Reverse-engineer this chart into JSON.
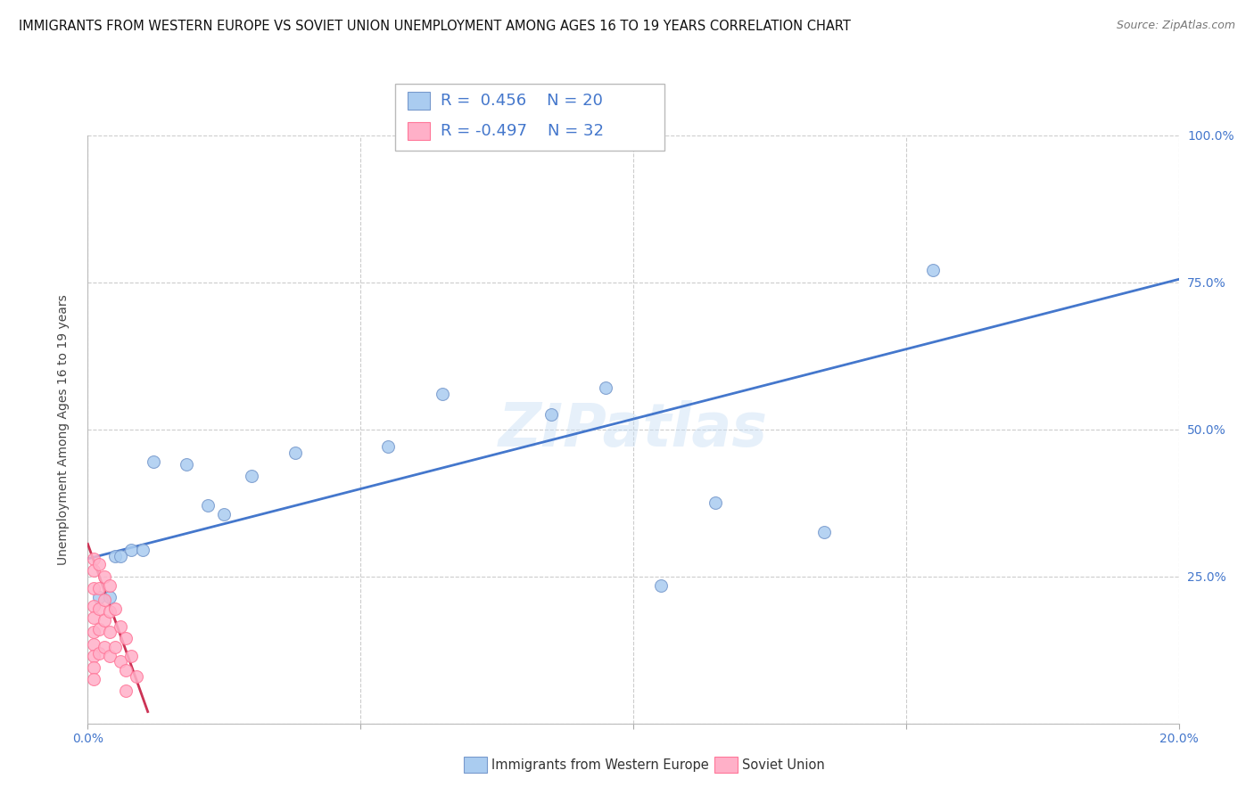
{
  "title": "IMMIGRANTS FROM WESTERN EUROPE VS SOVIET UNION UNEMPLOYMENT AMONG AGES 16 TO 19 YEARS CORRELATION CHART",
  "source": "Source: ZipAtlas.com",
  "ylabel": "Unemployment Among Ages 16 to 19 years",
  "xlim": [
    0.0,
    0.2
  ],
  "ylim": [
    0.0,
    1.0
  ],
  "xticks": [
    0.0,
    0.05,
    0.1,
    0.15,
    0.2
  ],
  "xticklabels": [
    "0.0%",
    "",
    "",
    "",
    "20.0%"
  ],
  "yticks": [
    0.0,
    0.25,
    0.5,
    0.75,
    1.0
  ],
  "yticklabels": [
    "",
    "25.0%",
    "50.0%",
    "75.0%",
    "100.0%"
  ],
  "blue_R": 0.456,
  "blue_N": 20,
  "pink_R": -0.497,
  "pink_N": 32,
  "blue_label": "Immigrants from Western Europe",
  "pink_label": "Soviet Union",
  "blue_color": "#aaccf0",
  "blue_edge": "#7799cc",
  "pink_color": "#ffb0c8",
  "pink_edge": "#ff7799",
  "blue_line_color": "#4477cc",
  "pink_line_color": "#cc3355",
  "watermark": "ZIPatlas",
  "blue_points_x": [
    0.002,
    0.004,
    0.005,
    0.006,
    0.008,
    0.01,
    0.012,
    0.018,
    0.022,
    0.025,
    0.03,
    0.038,
    0.055,
    0.065,
    0.085,
    0.095,
    0.105,
    0.115,
    0.135,
    0.155
  ],
  "blue_points_y": [
    0.215,
    0.215,
    0.285,
    0.285,
    0.295,
    0.295,
    0.445,
    0.44,
    0.37,
    0.355,
    0.42,
    0.46,
    0.47,
    0.56,
    0.525,
    0.57,
    0.235,
    0.375,
    0.325,
    0.77
  ],
  "pink_points_x": [
    0.001,
    0.001,
    0.001,
    0.001,
    0.001,
    0.001,
    0.001,
    0.001,
    0.001,
    0.001,
    0.002,
    0.002,
    0.002,
    0.002,
    0.002,
    0.003,
    0.003,
    0.003,
    0.003,
    0.004,
    0.004,
    0.004,
    0.004,
    0.005,
    0.005,
    0.006,
    0.006,
    0.007,
    0.007,
    0.007,
    0.008,
    0.009
  ],
  "pink_points_y": [
    0.28,
    0.26,
    0.23,
    0.2,
    0.18,
    0.155,
    0.135,
    0.115,
    0.095,
    0.075,
    0.27,
    0.23,
    0.195,
    0.16,
    0.12,
    0.25,
    0.21,
    0.175,
    0.13,
    0.235,
    0.19,
    0.155,
    0.115,
    0.195,
    0.13,
    0.165,
    0.105,
    0.145,
    0.09,
    0.055,
    0.115,
    0.08
  ],
  "blue_line_x": [
    0.0,
    0.2
  ],
  "blue_line_y": [
    0.28,
    0.755
  ],
  "pink_line_x": [
    0.0,
    0.011
  ],
  "pink_line_y": [
    0.305,
    0.02
  ],
  "title_fontsize": 10.5,
  "axis_label_fontsize": 10,
  "tick_fontsize": 10,
  "marker_size": 100,
  "background_color": "#ffffff",
  "grid_color": "#cccccc",
  "grid_style": "--"
}
